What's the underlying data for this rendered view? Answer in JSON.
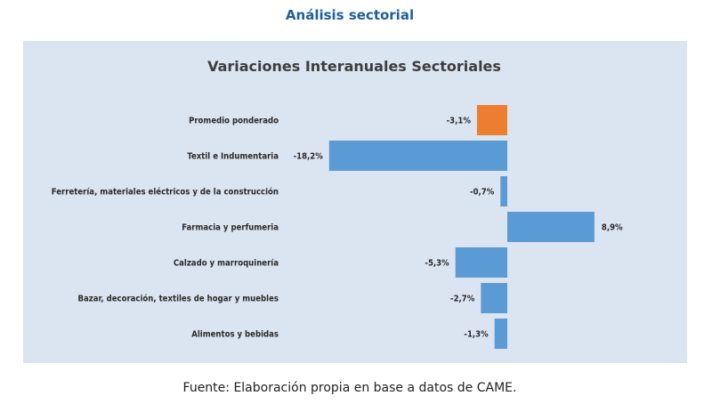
{
  "section_title": "Análisis sectorial",
  "source": "Fuente: Elaboración propia en base a datos de CAME.",
  "colors": {
    "highlight": "#ed7d31",
    "bar": "#5b9bd5",
    "background": "#dbe4f1"
  },
  "chart_data": {
    "type": "bar",
    "orientation": "horizontal",
    "title": "Variaciones Interanuales Sectoriales",
    "xlabel": "",
    "ylabel": "",
    "categories": [
      "Promedio ponderado",
      "Textil e Indumentaria",
      "Ferretería, materiales eléctricos y  de la construcción",
      "Farmacia y perfumeria",
      "Calzado y marroquinería",
      "Bazar, decoración, textiles de hogar y muebles",
      "Alimentos y bebidas"
    ],
    "values": [
      -3.1,
      -18.2,
      -0.7,
      8.9,
      -5.3,
      -2.7,
      -1.3
    ],
    "labels": [
      "-3,1%",
      "-18,2%",
      "-0,7%",
      "8,9%",
      "-5,3%",
      "-2,7%",
      "-1,3%"
    ],
    "highlight_index": 0,
    "grid": false
  }
}
